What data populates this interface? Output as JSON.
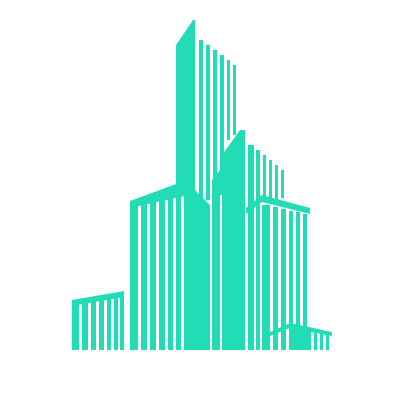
{
  "logo": {
    "icon": "city-skyline-logo-icon",
    "color": "#22DCB5",
    "background": "#FFFFFF"
  }
}
